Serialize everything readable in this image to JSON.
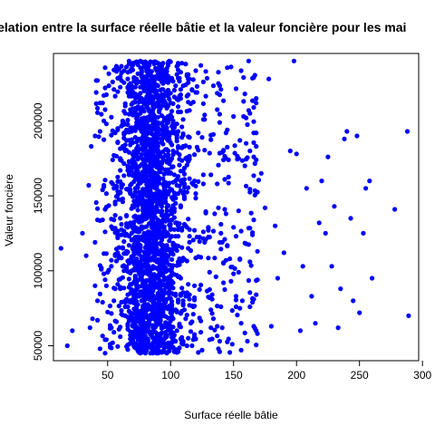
{
  "chart_data": {
    "type": "scatter",
    "title": "Relation entre la surface réelle bâtie et la valeur foncière pour les mai",
    "xlabel": "Surface réelle bâtie",
    "ylabel": "Valeur foncière",
    "xlim": [
      7,
      297
    ],
    "ylim": [
      40000,
      245000
    ],
    "xticks": [
      50,
      100,
      150,
      200,
      250,
      300
    ],
    "yticks": [
      50000,
      100000,
      150000,
      200000
    ],
    "grid": false,
    "legend": "none",
    "marker_color": "#0000ff",
    "n_points": 2600,
    "x_summary": {
      "core_range": [
        55,
        130
      ],
      "mode": 85
    },
    "y_summary": {
      "range": [
        45000,
        240000
      ]
    },
    "points": [
      [
        13,
        115000
      ],
      [
        18,
        50000
      ],
      [
        22,
        60000
      ],
      [
        30,
        125000
      ],
      [
        33,
        110000
      ],
      [
        35,
        157000
      ],
      [
        36,
        62000
      ],
      [
        38,
        68000
      ],
      [
        40,
        190000
      ],
      [
        42,
        80000
      ],
      [
        45,
        102000
      ],
      [
        48,
        94000
      ],
      [
        150,
        203000
      ],
      [
        155,
        75000
      ],
      [
        160,
        185000
      ],
      [
        163,
        180000
      ],
      [
        168,
        60000
      ],
      [
        172,
        165000
      ],
      [
        175,
        142000
      ],
      [
        178,
        228000
      ],
      [
        180,
        63000
      ],
      [
        183,
        130000
      ],
      [
        185,
        95000
      ],
      [
        190,
        112000
      ],
      [
        195,
        180000
      ],
      [
        198,
        240000
      ],
      [
        200,
        178000
      ],
      [
        203,
        60000
      ],
      [
        205,
        103000
      ],
      [
        208,
        155000
      ],
      [
        212,
        83000
      ],
      [
        215,
        65000
      ],
      [
        218,
        132000
      ],
      [
        220,
        160000
      ],
      [
        223,
        125000
      ],
      [
        225,
        176000
      ],
      [
        228,
        103000
      ],
      [
        230,
        143000
      ],
      [
        233,
        62000
      ],
      [
        235,
        88000
      ],
      [
        238,
        188000
      ],
      [
        240,
        193000
      ],
      [
        243,
        135000
      ],
      [
        245,
        80000
      ],
      [
        248,
        190000
      ],
      [
        250,
        72000
      ],
      [
        253,
        125000
      ],
      [
        255,
        155000
      ],
      [
        258,
        160000
      ],
      [
        260,
        95000
      ],
      [
        278,
        141000
      ],
      [
        288,
        193000
      ],
      [
        289,
        70000
      ]
    ]
  }
}
